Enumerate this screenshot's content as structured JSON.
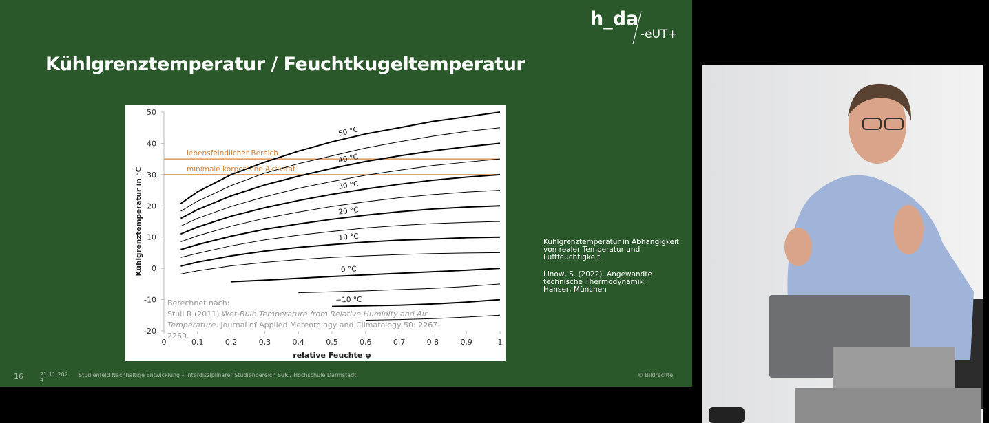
{
  "logo": {
    "name": "h_da",
    "partner": "-eUT+"
  },
  "slide": {
    "title": "Kühlgrenztemperatur / Feuchtkugeltemperatur",
    "caption": "Kühlgrenztemperatur in Abhängigkeit von realer Temperatur und Luftfeuchtigkeit.",
    "reference": "Linow, S. (2022). Angewandte technische Thermodynamik. Hanser, München",
    "footer": {
      "page": "16",
      "date": "21.11.2024",
      "text": "Studienfeld Nachhaltige Entwicklung – Interdisziplinärer Studienbereich SuK / Hochschule Darmstadt",
      "rights": "© Bildrechte"
    }
  },
  "chart_data": {
    "type": "line",
    "ylabel": "Kühlgrenztemperatur in °C",
    "xlabel": "relative Feuchte φ",
    "x": [
      0.05,
      0.1,
      0.2,
      0.3,
      0.4,
      0.5,
      0.6,
      0.7,
      0.8,
      0.9,
      1.0
    ],
    "xlim": [
      0,
      1
    ],
    "ylim": [
      -20,
      50
    ],
    "xticks": [
      0,
      {
        "value": 0.1,
        "label": "0,1"
      },
      {
        "value": 0.2,
        "label": "0,2"
      },
      {
        "value": 0.3,
        "label": "0,3"
      },
      {
        "value": 0.4,
        "label": "0,4"
      },
      {
        "value": 0.5,
        "label": "0,5"
      },
      {
        "value": 0.6,
        "label": "0,6"
      },
      {
        "value": 0.7,
        "label": "0,7"
      },
      {
        "value": 0.8,
        "label": "0,8"
      },
      {
        "value": 0.9,
        "label": "0,9"
      },
      1
    ],
    "yticks": [
      -20,
      -10,
      0,
      10,
      20,
      30,
      40,
      50
    ],
    "series": [
      {
        "name": "50 °C",
        "color": "#000000",
        "line_width": 2,
        "values": [
          20.7,
          24.5,
          30,
          34,
          37.5,
          40.5,
          43,
          45,
          47,
          48.5,
          50
        ]
      },
      {
        "color": "#000000",
        "line_width": 1,
        "values": [
          18.3,
          21.5,
          26.5,
          30.5,
          33.5,
          36,
          38.5,
          40.5,
          42.3,
          43.8,
          45
        ]
      },
      {
        "name": "40 °C",
        "color": "#000000",
        "line_width": 2,
        "values": [
          16,
          18.8,
          23.2,
          26.7,
          29.5,
          32,
          34.2,
          36,
          37.6,
          38.9,
          40
        ]
      },
      {
        "color": "#000000",
        "line_width": 1,
        "values": [
          13.5,
          16,
          19.8,
          22.9,
          25.6,
          27.8,
          29.8,
          31.4,
          32.9,
          34,
          35
        ]
      },
      {
        "name": "30 °C",
        "color": "#000000",
        "line_width": 2,
        "values": [
          11,
          13.2,
          16.7,
          19.4,
          21.7,
          23.7,
          25.4,
          26.9,
          28.2,
          29.2,
          30
        ]
      },
      {
        "color": "#000000",
        "line_width": 1,
        "values": [
          8.5,
          10.4,
          13.5,
          16,
          18,
          19.8,
          21.3,
          22.6,
          23.6,
          24.4,
          25
        ]
      },
      {
        "name": "20 °C",
        "color": "#000000",
        "line_width": 2,
        "values": [
          6,
          7.6,
          10.3,
          12.5,
          14.2,
          15.7,
          17,
          18.1,
          19,
          19.6,
          20
        ]
      },
      {
        "color": "#000000",
        "line_width": 1,
        "values": [
          3.5,
          4.8,
          7.2,
          9.1,
          10.6,
          11.8,
          12.9,
          13.7,
          14.3,
          14.7,
          15
        ]
      },
      {
        "name": "10 °C",
        "color": "#000000",
        "line_width": 2,
        "values": [
          0.7,
          2,
          4,
          5.5,
          6.7,
          7.6,
          8.4,
          9,
          9.4,
          9.8,
          10
        ]
      },
      {
        "color": "#000000",
        "line_width": 1,
        "values": [
          -1.8,
          -0.8,
          0.8,
          1.9,
          2.8,
          3.5,
          4,
          4.4,
          4.7,
          4.9,
          5
        ]
      },
      {
        "name": "0 °C",
        "color": "#000000",
        "line_width": 2,
        "values": [
          null,
          null,
          -4.3,
          -3.8,
          -3.2,
          -2.6,
          -2.1,
          -1.6,
          -1.1,
          -0.6,
          0
        ]
      },
      {
        "color": "#000000",
        "line_width": 1,
        "values": [
          null,
          null,
          null,
          null,
          -7.8,
          -7.5,
          -7.2,
          -6.8,
          -6.4,
          -5.8,
          -5
        ]
      },
      {
        "name": "−10 °C",
        "color": "#000000",
        "line_width": 2,
        "values": [
          null,
          null,
          null,
          null,
          null,
          -12.2,
          -12,
          -11.8,
          -11.4,
          -10.8,
          -10
        ]
      },
      {
        "color": "#000000",
        "line_width": 1,
        "values": [
          null,
          null,
          null,
          null,
          null,
          null,
          -16.6,
          -16.4,
          -16.1,
          -15.6,
          -15
        ]
      }
    ],
    "hlines": [
      {
        "value": 35,
        "label": "lebensfeindlicher Bereich",
        "color": "#d9823a"
      },
      {
        "value": 30,
        "label": "minimale körperliche Aktivität",
        "color": "#d9823a"
      }
    ],
    "annotation": {
      "heading": "Berechnet nach:",
      "parts": [
        "Stull R (2011) ",
        "Wet-Bulb Temperature from Relative Humidity and Air Temperature",
        ". Journal of Applied Meteorology and Climatology 50: 2267-2269."
      ]
    }
  }
}
